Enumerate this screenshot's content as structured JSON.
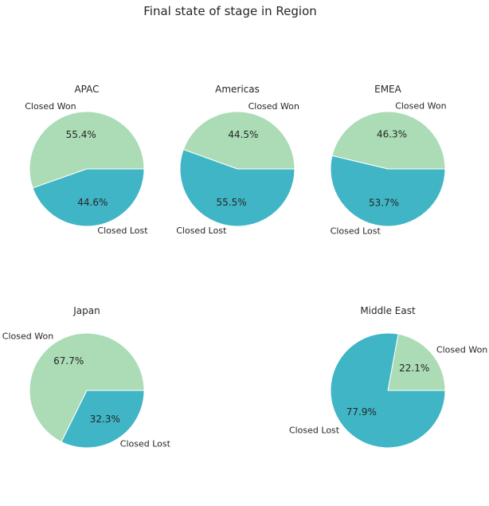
{
  "chart_data": {
    "type": "pie",
    "title": "Final state of stage in Region",
    "colors": {
      "Closed Won": "#abdcb5",
      "Closed Lost": "#3fb5c5",
      "wedge_edge": "#ffffff"
    },
    "subplots": [
      {
        "title": "APAC",
        "slices": [
          {
            "label": "Closed Won",
            "value": 55.4,
            "pct_text": "55.4%"
          },
          {
            "label": "Closed Lost",
            "value": 44.6,
            "pct_text": "44.6%"
          }
        ]
      },
      {
        "title": "Americas",
        "slices": [
          {
            "label": "Closed Won",
            "value": 44.5,
            "pct_text": "44.5%"
          },
          {
            "label": "Closed Lost",
            "value": 55.5,
            "pct_text": "55.5%"
          }
        ]
      },
      {
        "title": "EMEA",
        "slices": [
          {
            "label": "Closed Won",
            "value": 46.3,
            "pct_text": "46.3%"
          },
          {
            "label": "Closed Lost",
            "value": 53.7,
            "pct_text": "53.7%"
          }
        ]
      },
      {
        "title": "Japan",
        "slices": [
          {
            "label": "Closed Won",
            "value": 67.7,
            "pct_text": "67.7%"
          },
          {
            "label": "Closed Lost",
            "value": 32.3,
            "pct_text": "32.3%"
          }
        ]
      },
      {
        "title": "Middle East",
        "slices": [
          {
            "label": "Closed Won",
            "value": 22.1,
            "pct_text": "22.1%"
          },
          {
            "label": "Closed Lost",
            "value": 77.9,
            "pct_text": "77.9%"
          }
        ]
      }
    ]
  }
}
